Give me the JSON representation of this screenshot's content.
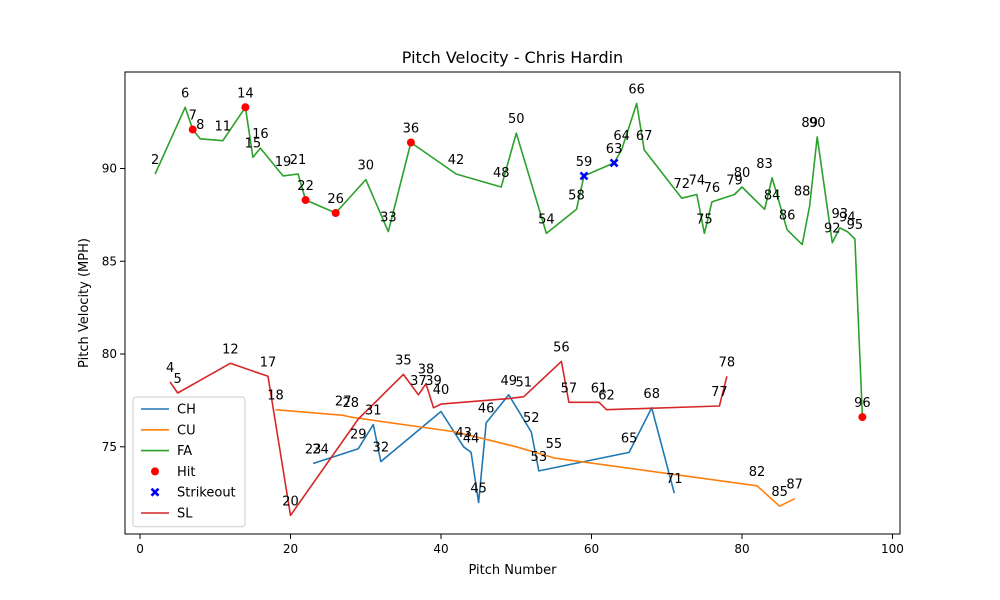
{
  "chart_data": {
    "type": "line",
    "title": "Pitch Velocity - Chris Hardin",
    "xlabel": "Pitch Number",
    "ylabel": "Pitch Velocity (MPH)",
    "xlim": [
      -2,
      101
    ],
    "ylim": [
      70.3,
      95.2
    ],
    "xticks": [
      0,
      20,
      40,
      60,
      80,
      100
    ],
    "yticks": [
      75,
      80,
      85,
      90
    ],
    "grid": false,
    "legend_position": "lower-left",
    "series": [
      {
        "name": "CH",
        "color": "#1f77b4",
        "x": [
          23,
          29,
          31,
          32,
          40,
          43,
          44,
          45,
          46,
          49,
          52,
          53,
          65,
          68,
          71
        ],
        "y": [
          74.1,
          74.9,
          76.2,
          74.2,
          76.9,
          75.0,
          74.7,
          72.0,
          76.3,
          77.8,
          75.8,
          73.7,
          74.7,
          77.1,
          72.5
        ]
      },
      {
        "name": "CU",
        "color": "#ff7f0e",
        "x": [
          18,
          27,
          28,
          42,
          50,
          55,
          82,
          85,
          87
        ],
        "y": [
          77.0,
          76.7,
          76.6,
          75.8,
          75.0,
          74.4,
          72.9,
          71.8,
          72.2
        ]
      },
      {
        "name": "FA",
        "color": "#2ca02c",
        "x": [
          2,
          6,
          7,
          8,
          11,
          14,
          15,
          16,
          19,
          21,
          22,
          26,
          30,
          33,
          36,
          42,
          48,
          50,
          54,
          58,
          59,
          63,
          64,
          66,
          67,
          72,
          74,
          75,
          76,
          79,
          80,
          83,
          84,
          86,
          88,
          89,
          90,
          92,
          93,
          94,
          95,
          96
        ],
        "y": [
          89.7,
          93.3,
          92.1,
          91.6,
          91.5,
          93.3,
          90.6,
          91.1,
          89.6,
          89.7,
          88.3,
          87.6,
          89.4,
          86.6,
          91.4,
          89.7,
          89.0,
          91.9,
          86.5,
          87.8,
          89.6,
          90.3,
          91.0,
          93.5,
          91.0,
          88.4,
          88.6,
          86.5,
          88.2,
          88.6,
          89.0,
          87.8,
          89.5,
          86.7,
          85.9,
          88.0,
          91.7,
          86.0,
          86.8,
          86.6,
          86.2,
          76.6
        ]
      },
      {
        "name": "SL",
        "color": "#d62728",
        "x": [
          4,
          5,
          12,
          17,
          20,
          29,
          35,
          37,
          38,
          39,
          40,
          49,
          51,
          56,
          57,
          61,
          62,
          77,
          78
        ],
        "y": [
          78.5,
          77.9,
          79.5,
          78.8,
          71.3,
          76.5,
          78.9,
          77.8,
          78.4,
          77.1,
          77.3,
          77.6,
          77.7,
          79.6,
          77.4,
          77.4,
          77.0,
          77.2,
          78.8
        ]
      }
    ],
    "markers": [
      {
        "name": "Hit",
        "color": "#ff0000",
        "shape": "circle",
        "x": [
          7,
          14,
          22,
          26,
          36,
          96
        ],
        "y": [
          92.1,
          93.3,
          88.3,
          87.6,
          91.4,
          76.6
        ]
      },
      {
        "name": "Strikeout",
        "color": "#0000ff",
        "shape": "x",
        "x": [
          59,
          63
        ],
        "y": [
          89.6,
          90.3
        ]
      }
    ],
    "legend": [
      "CH",
      "CU",
      "FA",
      "Hit",
      "Strikeout",
      "SL"
    ],
    "point_labels": [
      {
        "text": "2",
        "x": 2,
        "y": 89.7
      },
      {
        "text": "4",
        "x": 4,
        "y": 78.5
      },
      {
        "text": "5",
        "x": 5,
        "y": 77.9
      },
      {
        "text": "6",
        "x": 6,
        "y": 93.3
      },
      {
        "text": "7",
        "x": 7,
        "y": 92.1
      },
      {
        "text": "8",
        "x": 8,
        "y": 91.6
      },
      {
        "text": "11",
        "x": 11,
        "y": 91.5
      },
      {
        "text": "12",
        "x": 12,
        "y": 79.5
      },
      {
        "text": "14",
        "x": 14,
        "y": 93.3
      },
      {
        "text": "15",
        "x": 15,
        "y": 90.6
      },
      {
        "text": "16",
        "x": 16,
        "y": 91.1
      },
      {
        "text": "17",
        "x": 17,
        "y": 78.8
      },
      {
        "text": "18",
        "x": 18,
        "y": 77.0
      },
      {
        "text": "19",
        "x": 19,
        "y": 89.6
      },
      {
        "text": "20",
        "x": 20,
        "y": 71.3
      },
      {
        "text": "21",
        "x": 21,
        "y": 89.7
      },
      {
        "text": "22",
        "x": 22,
        "y": 88.3
      },
      {
        "text": "23",
        "x": 23,
        "y": 74.1
      },
      {
        "text": "24",
        "x": 24,
        "y": 74.1
      },
      {
        "text": "26",
        "x": 26,
        "y": 87.6
      },
      {
        "text": "27",
        "x": 27,
        "y": 76.7
      },
      {
        "text": "28",
        "x": 28,
        "y": 76.6
      },
      {
        "text": "29",
        "x": 29,
        "y": 74.9
      },
      {
        "text": "30",
        "x": 30,
        "y": 89.4
      },
      {
        "text": "31",
        "x": 31,
        "y": 76.2
      },
      {
        "text": "32",
        "x": 32,
        "y": 74.2
      },
      {
        "text": "33",
        "x": 33,
        "y": 86.6
      },
      {
        "text": "35",
        "x": 35,
        "y": 78.9
      },
      {
        "text": "36",
        "x": 36,
        "y": 91.4
      },
      {
        "text": "37",
        "x": 37,
        "y": 77.8
      },
      {
        "text": "38",
        "x": 38,
        "y": 78.4
      },
      {
        "text": "39",
        "x": 39,
        "y": 77.8
      },
      {
        "text": "40",
        "x": 40,
        "y": 77.3
      },
      {
        "text": "42",
        "x": 42,
        "y": 89.7
      },
      {
        "text": "43",
        "x": 43,
        "y": 75.0
      },
      {
        "text": "44",
        "x": 44,
        "y": 74.7
      },
      {
        "text": "45",
        "x": 45,
        "y": 72.0
      },
      {
        "text": "46",
        "x": 46,
        "y": 76.3
      },
      {
        "text": "48",
        "x": 48,
        "y": 89.0
      },
      {
        "text": "49",
        "x": 49,
        "y": 77.8
      },
      {
        "text": "50",
        "x": 50,
        "y": 91.9
      },
      {
        "text": "51",
        "x": 51,
        "y": 77.7
      },
      {
        "text": "52",
        "x": 52,
        "y": 75.8
      },
      {
        "text": "53",
        "x": 53,
        "y": 73.7
      },
      {
        "text": "54",
        "x": 54,
        "y": 86.5
      },
      {
        "text": "55",
        "x": 55,
        "y": 74.4
      },
      {
        "text": "56",
        "x": 56,
        "y": 79.6
      },
      {
        "text": "57",
        "x": 57,
        "y": 77.4
      },
      {
        "text": "58",
        "x": 58,
        "y": 87.8
      },
      {
        "text": "59",
        "x": 59,
        "y": 89.6
      },
      {
        "text": "61",
        "x": 61,
        "y": 77.4
      },
      {
        "text": "62",
        "x": 62,
        "y": 77.0
      },
      {
        "text": "63",
        "x": 63,
        "y": 90.3
      },
      {
        "text": "64",
        "x": 64,
        "y": 91.0
      },
      {
        "text": "65",
        "x": 65,
        "y": 74.7
      },
      {
        "text": "66",
        "x": 66,
        "y": 93.5
      },
      {
        "text": "67",
        "x": 67,
        "y": 91.0
      },
      {
        "text": "68",
        "x": 68,
        "y": 77.1
      },
      {
        "text": "71",
        "x": 71,
        "y": 72.5
      },
      {
        "text": "72",
        "x": 72,
        "y": 88.4
      },
      {
        "text": "74",
        "x": 74,
        "y": 88.6
      },
      {
        "text": "75",
        "x": 75,
        "y": 86.5
      },
      {
        "text": "76",
        "x": 76,
        "y": 88.2
      },
      {
        "text": "77",
        "x": 77,
        "y": 77.2
      },
      {
        "text": "78",
        "x": 78,
        "y": 78.8
      },
      {
        "text": "79",
        "x": 79,
        "y": 88.6
      },
      {
        "text": "80",
        "x": 80,
        "y": 89.0
      },
      {
        "text": "82",
        "x": 82,
        "y": 72.9
      },
      {
        "text": "83",
        "x": 83,
        "y": 89.5
      },
      {
        "text": "84",
        "x": 84,
        "y": 87.8
      },
      {
        "text": "85",
        "x": 85,
        "y": 71.8
      },
      {
        "text": "86",
        "x": 86,
        "y": 86.7
      },
      {
        "text": "87",
        "x": 87,
        "y": 72.2
      },
      {
        "text": "88",
        "x": 88,
        "y": 88.0
      },
      {
        "text": "89",
        "x": 89,
        "y": 91.7
      },
      {
        "text": "90",
        "x": 90,
        "y": 91.7
      },
      {
        "text": "92",
        "x": 92,
        "y": 86.0
      },
      {
        "text": "93",
        "x": 93,
        "y": 86.8
      },
      {
        "text": "94",
        "x": 94,
        "y": 86.6
      },
      {
        "text": "95",
        "x": 95,
        "y": 86.2
      },
      {
        "text": "96",
        "x": 96,
        "y": 76.6
      }
    ]
  }
}
